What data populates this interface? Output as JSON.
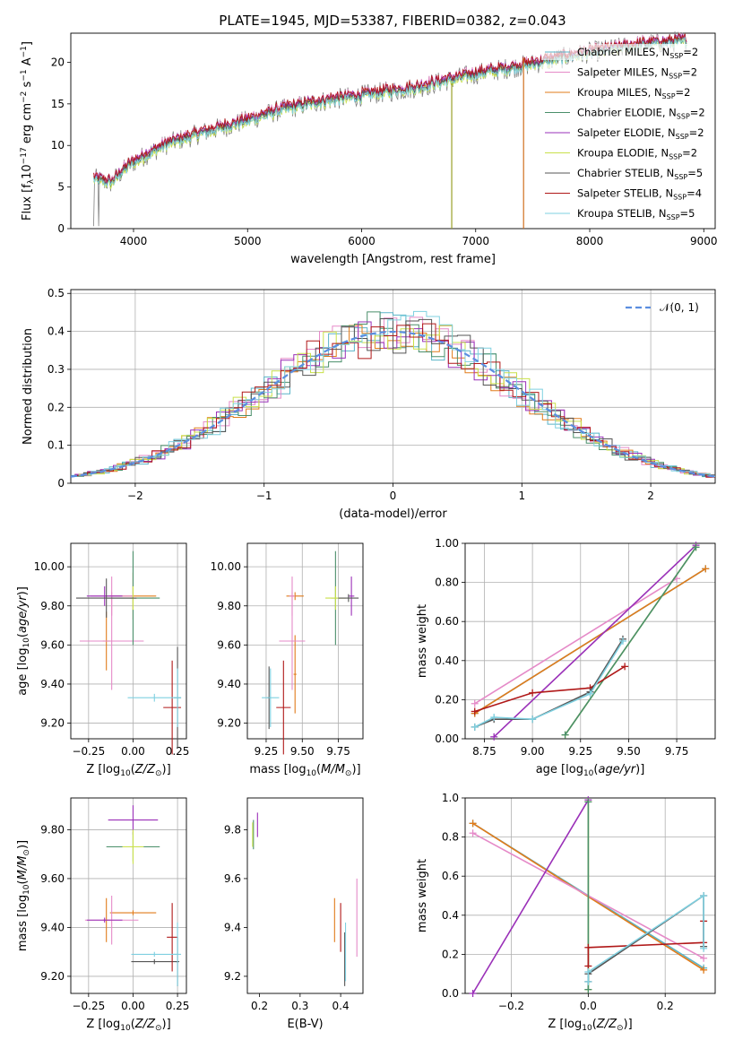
{
  "figure_title": "PLATE=1945, MJD=53387, FIBERID=0382, z=0.043",
  "colors": {
    "Chabrier MILES": "#5ab4c8",
    "Salpeter MILES": "#e58ac8",
    "Kroupa MILES": "#e07b1a",
    "Chabrier ELODIE": "#4a8f6a",
    "Salpeter ELODIE": "#9a30b8",
    "Kroupa ELODIE": "#c9e04a",
    "Chabrier STELIB": "#555555",
    "Salpeter STELIB": "#b01818",
    "Kroupa STELIB": "#7fd0e0",
    "normal": "#5b8ee0"
  },
  "chart_data": [
    {
      "id": "spectrum",
      "type": "line",
      "xlabel": "wavelength [Angstrom, rest frame]",
      "ylabel": "Flux [fλ10⁻¹⁷ erg cm⁻² s⁻¹ A⁻¹]",
      "xlim": [
        3450,
        9100
      ],
      "ylim": [
        0,
        23.5
      ],
      "xticks": [
        4000,
        5000,
        6000,
        7000,
        8000,
        9000
      ],
      "yticks": [
        0,
        5,
        10,
        15,
        20
      ],
      "grid": false,
      "legend_position": "top-right",
      "continuum_x": [
        3650,
        3800,
        3950,
        4100,
        4300,
        4600,
        5000,
        5300,
        5600,
        6000,
        6500,
        7000,
        7500,
        8000,
        8500,
        8850
      ],
      "continuum_y": [
        6.0,
        5.5,
        7.5,
        8.8,
        10.2,
        11.5,
        13.0,
        14.3,
        15.2,
        16.0,
        17.0,
        18.6,
        19.8,
        21.2,
        22.2,
        22.6
      ],
      "series": [
        {
          "name": "Chabrier MILES, N_SSP=2",
          "label_main": "Chabrier MILES, N",
          "label_sub": "SSP",
          "label_tail": "=2",
          "offset": 0.2
        },
        {
          "name": "Salpeter MILES, N_SSP=2",
          "label_main": "Salpeter MILES, N",
          "label_sub": "SSP",
          "label_tail": "=2",
          "offset": 0.45
        },
        {
          "name": "Kroupa MILES, N_SSP=2",
          "label_main": "Kroupa MILES, N",
          "label_sub": "SSP",
          "label_tail": "=2",
          "offset": 0.1
        },
        {
          "name": "Chabrier ELODIE, N_SSP=2",
          "label_main": "Chabrier ELODIE, N",
          "label_sub": "SSP",
          "label_tail": "=2",
          "offset": -0.1
        },
        {
          "name": "Salpeter ELODIE, N_SSP=2",
          "label_main": "Salpeter ELODIE, N",
          "label_sub": "SSP",
          "label_tail": "=2",
          "offset": 0.3
        },
        {
          "name": "Kroupa ELODIE, N_SSP=2",
          "label_main": "Kroupa ELODIE, N",
          "label_sub": "SSP",
          "label_tail": "=2",
          "offset": -0.3
        },
        {
          "name": "Chabrier STELIB, N_SSP=5",
          "label_main": "Chabrier STELIB, N",
          "label_sub": "SSP",
          "label_tail": "=5",
          "offset": 0.0
        },
        {
          "name": "Salpeter STELIB, N_SSP=4",
          "label_main": "Salpeter STELIB, N",
          "label_sub": "SSP",
          "label_tail": "=4",
          "offset": 0.4
        },
        {
          "name": "Kroupa STELIB, N_SSP=5",
          "label_main": "Kroupa STELIB, N",
          "label_sub": "SSP",
          "label_tail": "=5",
          "offset": -0.2
        }
      ]
    },
    {
      "id": "residuals",
      "type": "line",
      "xlabel": "(data-model)/error",
      "ylabel": "Normed distribution",
      "xlim": [
        -2.5,
        2.5
      ],
      "ylim": [
        0,
        0.51
      ],
      "xticks": [
        -2,
        -1,
        0,
        1,
        2
      ],
      "yticks": [
        0.0,
        0.1,
        0.2,
        0.3,
        0.4,
        0.5
      ],
      "grid": true,
      "legend_position": "top-right",
      "legend_label": "𝒩(0, 1)",
      "bin_width": 0.1
    },
    {
      "id": "age_vs_Z",
      "type": "scatter",
      "xlabel": "Z [log10(Z/Z⊙)]",
      "ylabel": "age  [log10(age/yr)]",
      "xlim": [
        -0.35,
        0.3
      ],
      "ylim": [
        9.12,
        10.12
      ],
      "xticks": [
        -0.25,
        0.0,
        0.25
      ],
      "yticks": [
        9.2,
        9.4,
        9.6,
        9.8,
        10.0
      ],
      "grid": true,
      "points": [
        {
          "s": "Kroupa MILES",
          "x": 0.0,
          "y": 9.85,
          "ex": 0.13,
          "ey": 0.12
        },
        {
          "s": "Kroupa MILES",
          "x": -0.15,
          "y": 9.62,
          "ex": 0.02,
          "ey": 0.15
        },
        {
          "s": "Salpeter MILES",
          "x": -0.12,
          "y": 9.85,
          "ex": 0.12,
          "ey": 0.1
        },
        {
          "s": "Salpeter MILES",
          "x": -0.12,
          "y": 9.62,
          "ex": 0.18,
          "ey": 0.25
        },
        {
          "s": "Chabrier ELODIE",
          "x": 0.0,
          "y": 9.84,
          "ex": 0.15,
          "ey": 0.24
        },
        {
          "s": "Salpeter ELODIE",
          "x": -0.16,
          "y": 9.85,
          "ex": 0.1,
          "ey": 0.05
        },
        {
          "s": "Kroupa ELODIE",
          "x": 0.0,
          "y": 9.84,
          "ex": 0.02,
          "ey": 0.06
        },
        {
          "s": "Chabrier STELIB",
          "x": -0.15,
          "y": 9.84,
          "ex": 0.17,
          "ey": 0.1
        },
        {
          "s": "Chabrier STELIB",
          "x": 0.25,
          "y": 9.33,
          "ex": 0.02,
          "ey": 0.26
        },
        {
          "s": "Salpeter STELIB",
          "x": 0.22,
          "y": 9.28,
          "ex": 0.05,
          "ey": 0.24
        },
        {
          "s": "Kroupa STELIB",
          "x": 0.25,
          "y": 9.33,
          "ex": 0.02,
          "ey": 0.15
        },
        {
          "s": "Kroupa STELIB",
          "x": 0.12,
          "y": 9.33,
          "ex": 0.15,
          "ey": 0.02
        }
      ]
    },
    {
      "id": "age_vs_mass",
      "type": "scatter",
      "xlabel": "mass [log10(M/M⊙)]",
      "ylabel": "",
      "xlim": [
        9.12,
        9.92
      ],
      "ylim": [
        9.12,
        10.12
      ],
      "xticks": [
        9.25,
        9.5,
        9.75
      ],
      "yticks": [
        9.2,
        9.4,
        9.6,
        9.8,
        10.0
      ],
      "grid": true,
      "points": [
        {
          "s": "Kroupa MILES",
          "x": 9.45,
          "y": 9.85,
          "ex": 0.06,
          "ey": 0.02
        },
        {
          "s": "Kroupa MILES",
          "x": 9.45,
          "y": 9.45,
          "ex": 0.01,
          "ey": 0.2
        },
        {
          "s": "Salpeter MILES",
          "x": 9.43,
          "y": 9.85,
          "ex": 0.02,
          "ey": 0.1
        },
        {
          "s": "Salpeter MILES",
          "x": 9.43,
          "y": 9.62,
          "ex": 0.09,
          "ey": 0.25
        },
        {
          "s": "Chabrier ELODIE",
          "x": 9.73,
          "y": 9.84,
          "ex": 0.03,
          "ey": 0.24
        },
        {
          "s": "Salpeter ELODIE",
          "x": 9.84,
          "y": 9.85,
          "ex": 0.02,
          "ey": 0.1
        },
        {
          "s": "Kroupa ELODIE",
          "x": 9.73,
          "y": 9.84,
          "ex": 0.07,
          "ey": 0.06
        },
        {
          "s": "Chabrier STELIB",
          "x": 9.82,
          "y": 9.84,
          "ex": 0.07,
          "ey": 0.02
        },
        {
          "s": "Chabrier STELIB",
          "x": 9.27,
          "y": 9.33,
          "ex": 0.01,
          "ey": 0.16
        },
        {
          "s": "Salpeter STELIB",
          "x": 9.37,
          "y": 9.28,
          "ex": 0.05,
          "ey": 0.24
        },
        {
          "s": "Kroupa STELIB",
          "x": 9.28,
          "y": 9.33,
          "ex": 0.06,
          "ey": 0.15
        }
      ]
    },
    {
      "id": "weight_vs_age",
      "type": "line",
      "xlabel": "age  [log10(age/yr)]",
      "ylabel": "mass weight",
      "xlim": [
        8.65,
        9.95
      ],
      "ylim": [
        0,
        1
      ],
      "xticks": [
        8.75,
        9.0,
        9.25,
        9.5,
        9.75
      ],
      "yticks": [
        0.0,
        0.2,
        0.4,
        0.6,
        0.8,
        1.0
      ],
      "grid": true,
      "series": [
        {
          "s": "Chabrier MILES",
          "x": [
            8.7,
            9.9
          ],
          "y": [
            0.13,
            0.87
          ]
        },
        {
          "s": "Kroupa MILES",
          "x": [
            8.7,
            9.9
          ],
          "y": [
            0.13,
            0.87
          ]
        },
        {
          "s": "Salpeter MILES",
          "x": [
            8.7,
            9.75
          ],
          "y": [
            0.18,
            0.82
          ]
        },
        {
          "s": "Salpeter ELODIE",
          "x": [
            8.8,
            9.85
          ],
          "y": [
            0.01,
            0.99
          ]
        },
        {
          "s": "Kroupa ELODIE",
          "x": [
            9.17,
            9.85
          ],
          "y": [
            0.02,
            0.98
          ]
        },
        {
          "s": "Chabrier ELODIE",
          "x": [
            9.17,
            9.85
          ],
          "y": [
            0.02,
            0.98
          ]
        },
        {
          "s": "Salpeter STELIB",
          "x": [
            8.7,
            9.0,
            9.3,
            9.48
          ],
          "y": [
            0.14,
            0.235,
            0.26,
            0.37
          ]
        },
        {
          "s": "Chabrier STELIB",
          "x": [
            8.7,
            8.8,
            9.0,
            9.3,
            9.47
          ],
          "y": [
            0.06,
            0.1,
            0.1,
            0.24,
            0.51
          ]
        },
        {
          "s": "Kroupa STELIB",
          "x": [
            8.7,
            8.8,
            9.0,
            9.3,
            9.47
          ],
          "y": [
            0.06,
            0.11,
            0.1,
            0.23,
            0.5
          ]
        }
      ]
    },
    {
      "id": "mass_vs_Z",
      "type": "scatter",
      "xlabel": "Z [log10(Z/Z⊙)]",
      "ylabel": "mass [log10(M/M⊙)]",
      "xlim": [
        -0.35,
        0.3
      ],
      "ylim": [
        9.13,
        9.93
      ],
      "xticks": [
        -0.25,
        0.0,
        0.25
      ],
      "yticks": [
        9.2,
        9.4,
        9.6,
        9.8
      ],
      "grid": true,
      "points": [
        {
          "s": "Kroupa MILES",
          "x": 0.0,
          "y": 9.46,
          "ex": 0.13,
          "ey": 0.01
        },
        {
          "s": "Kroupa MILES",
          "x": -0.15,
          "y": 9.43,
          "ex": 0.02,
          "ey": 0.09
        },
        {
          "s": "Salpeter MILES",
          "x": -0.12,
          "y": 9.43,
          "ex": 0.15,
          "ey": 0.1
        },
        {
          "s": "Chabrier ELODIE",
          "x": 0.0,
          "y": 9.73,
          "ex": 0.15,
          "ey": 0.06
        },
        {
          "s": "Salpeter ELODIE",
          "x": 0.0,
          "y": 9.84,
          "ex": 0.14,
          "ey": 0.06
        },
        {
          "s": "Salpeter ELODIE",
          "x": -0.16,
          "y": 9.43,
          "ex": 0.1,
          "ey": 0.01
        },
        {
          "s": "Kroupa ELODIE",
          "x": 0.0,
          "y": 9.73,
          "ex": 0.06,
          "ey": 0.07
        },
        {
          "s": "Chabrier STELIB",
          "x": 0.12,
          "y": 9.26,
          "ex": 0.13,
          "ey": 0.01
        },
        {
          "s": "Chabrier STELIB",
          "x": 0.25,
          "y": 9.26,
          "ex": 0.01,
          "ey": 0.1
        },
        {
          "s": "Salpeter STELIB",
          "x": 0.22,
          "y": 9.36,
          "ex": 0.03,
          "ey": 0.14
        },
        {
          "s": "Kroupa STELIB",
          "x": 0.25,
          "y": 9.29,
          "ex": 0.02,
          "ey": 0.13
        },
        {
          "s": "Kroupa STELIB",
          "x": 0.12,
          "y": 9.29,
          "ex": 0.13,
          "ey": 0.01
        }
      ]
    },
    {
      "id": "mass_vs_ebv",
      "type": "scatter",
      "xlabel": "E(B-V)",
      "ylabel": "",
      "xlim": [
        0.17,
        0.455
      ],
      "ylim": [
        9.13,
        9.93
      ],
      "xticks": [
        0.2,
        0.3,
        0.4
      ],
      "yticks": [
        9.2,
        9.4,
        9.6,
        9.8
      ],
      "grid": false,
      "points": [
        {
          "s": "Kroupa MILES",
          "x": 0.385,
          "y": 9.43,
          "ex": 0.0,
          "ey": 0.09
        },
        {
          "s": "Salpeter STELIB",
          "x": 0.4,
          "y": 9.4,
          "ex": 0.0,
          "ey": 0.1
        },
        {
          "s": "Chabrier STELIB",
          "x": 0.41,
          "y": 9.27,
          "ex": 0.0,
          "ey": 0.11
        },
        {
          "s": "Kroupa STELIB",
          "x": 0.412,
          "y": 9.3,
          "ex": 0.0,
          "ey": 0.12
        },
        {
          "s": "Salpeter MILES",
          "x": 0.44,
          "y": 9.44,
          "ex": 0.0,
          "ey": 0.16
        },
        {
          "s": "Chabrier ELODIE",
          "x": 0.185,
          "y": 9.78,
          "ex": 0.0,
          "ey": 0.06
        },
        {
          "s": "Kroupa ELODIE",
          "x": 0.183,
          "y": 9.78,
          "ex": 0.0,
          "ey": 0.05
        },
        {
          "s": "Salpeter ELODIE",
          "x": 0.195,
          "y": 9.82,
          "ex": 0.0,
          "ey": 0.05
        }
      ]
    },
    {
      "id": "weight_vs_Z",
      "type": "line",
      "xlabel": "Z [log10(Z/Z⊙)]",
      "ylabel": "mass weight",
      "xlim": [
        -0.32,
        0.33
      ],
      "ylim": [
        0,
        1
      ],
      "xticks": [
        -0.2,
        0.0,
        0.2
      ],
      "yticks": [
        0.0,
        0.2,
        0.4,
        0.6,
        0.8,
        1.0
      ],
      "grid": true,
      "series": [
        {
          "s": "Chabrier MILES",
          "x": [
            -0.3,
            0.3
          ],
          "y": [
            0.87,
            0.13
          ]
        },
        {
          "s": "Kroupa MILES",
          "x": [
            -0.3,
            0.3
          ],
          "y": [
            0.87,
            0.12
          ]
        },
        {
          "s": "Salpeter MILES",
          "x": [
            -0.3,
            0.3
          ],
          "y": [
            0.82,
            0.18
          ]
        },
        {
          "s": "Salpeter ELODIE",
          "x": [
            -0.3,
            0.0
          ],
          "y": [
            0.0,
            0.99
          ]
        },
        {
          "s": "Kroupa ELODIE",
          "x": [
            0.0,
            0.0
          ],
          "y": [
            0.02,
            0.98
          ]
        },
        {
          "s": "Chabrier ELODIE",
          "x": [
            0.0,
            0.0
          ],
          "y": [
            0.02,
            0.98
          ]
        },
        {
          "s": "Salpeter STELIB",
          "x": [
            0.0,
            0.0,
            0.3,
            0.3
          ],
          "y": [
            0.14,
            0.235,
            0.26,
            0.37
          ]
        },
        {
          "s": "Chabrier STELIB",
          "x": [
            0.0,
            0.0,
            0.3,
            0.3
          ],
          "y": [
            0.06,
            0.1,
            0.5,
            0.24
          ]
        },
        {
          "s": "Kroupa STELIB",
          "x": [
            0.0,
            0.0,
            0.3,
            0.3
          ],
          "y": [
            0.06,
            0.11,
            0.5,
            0.23
          ]
        }
      ]
    }
  ]
}
